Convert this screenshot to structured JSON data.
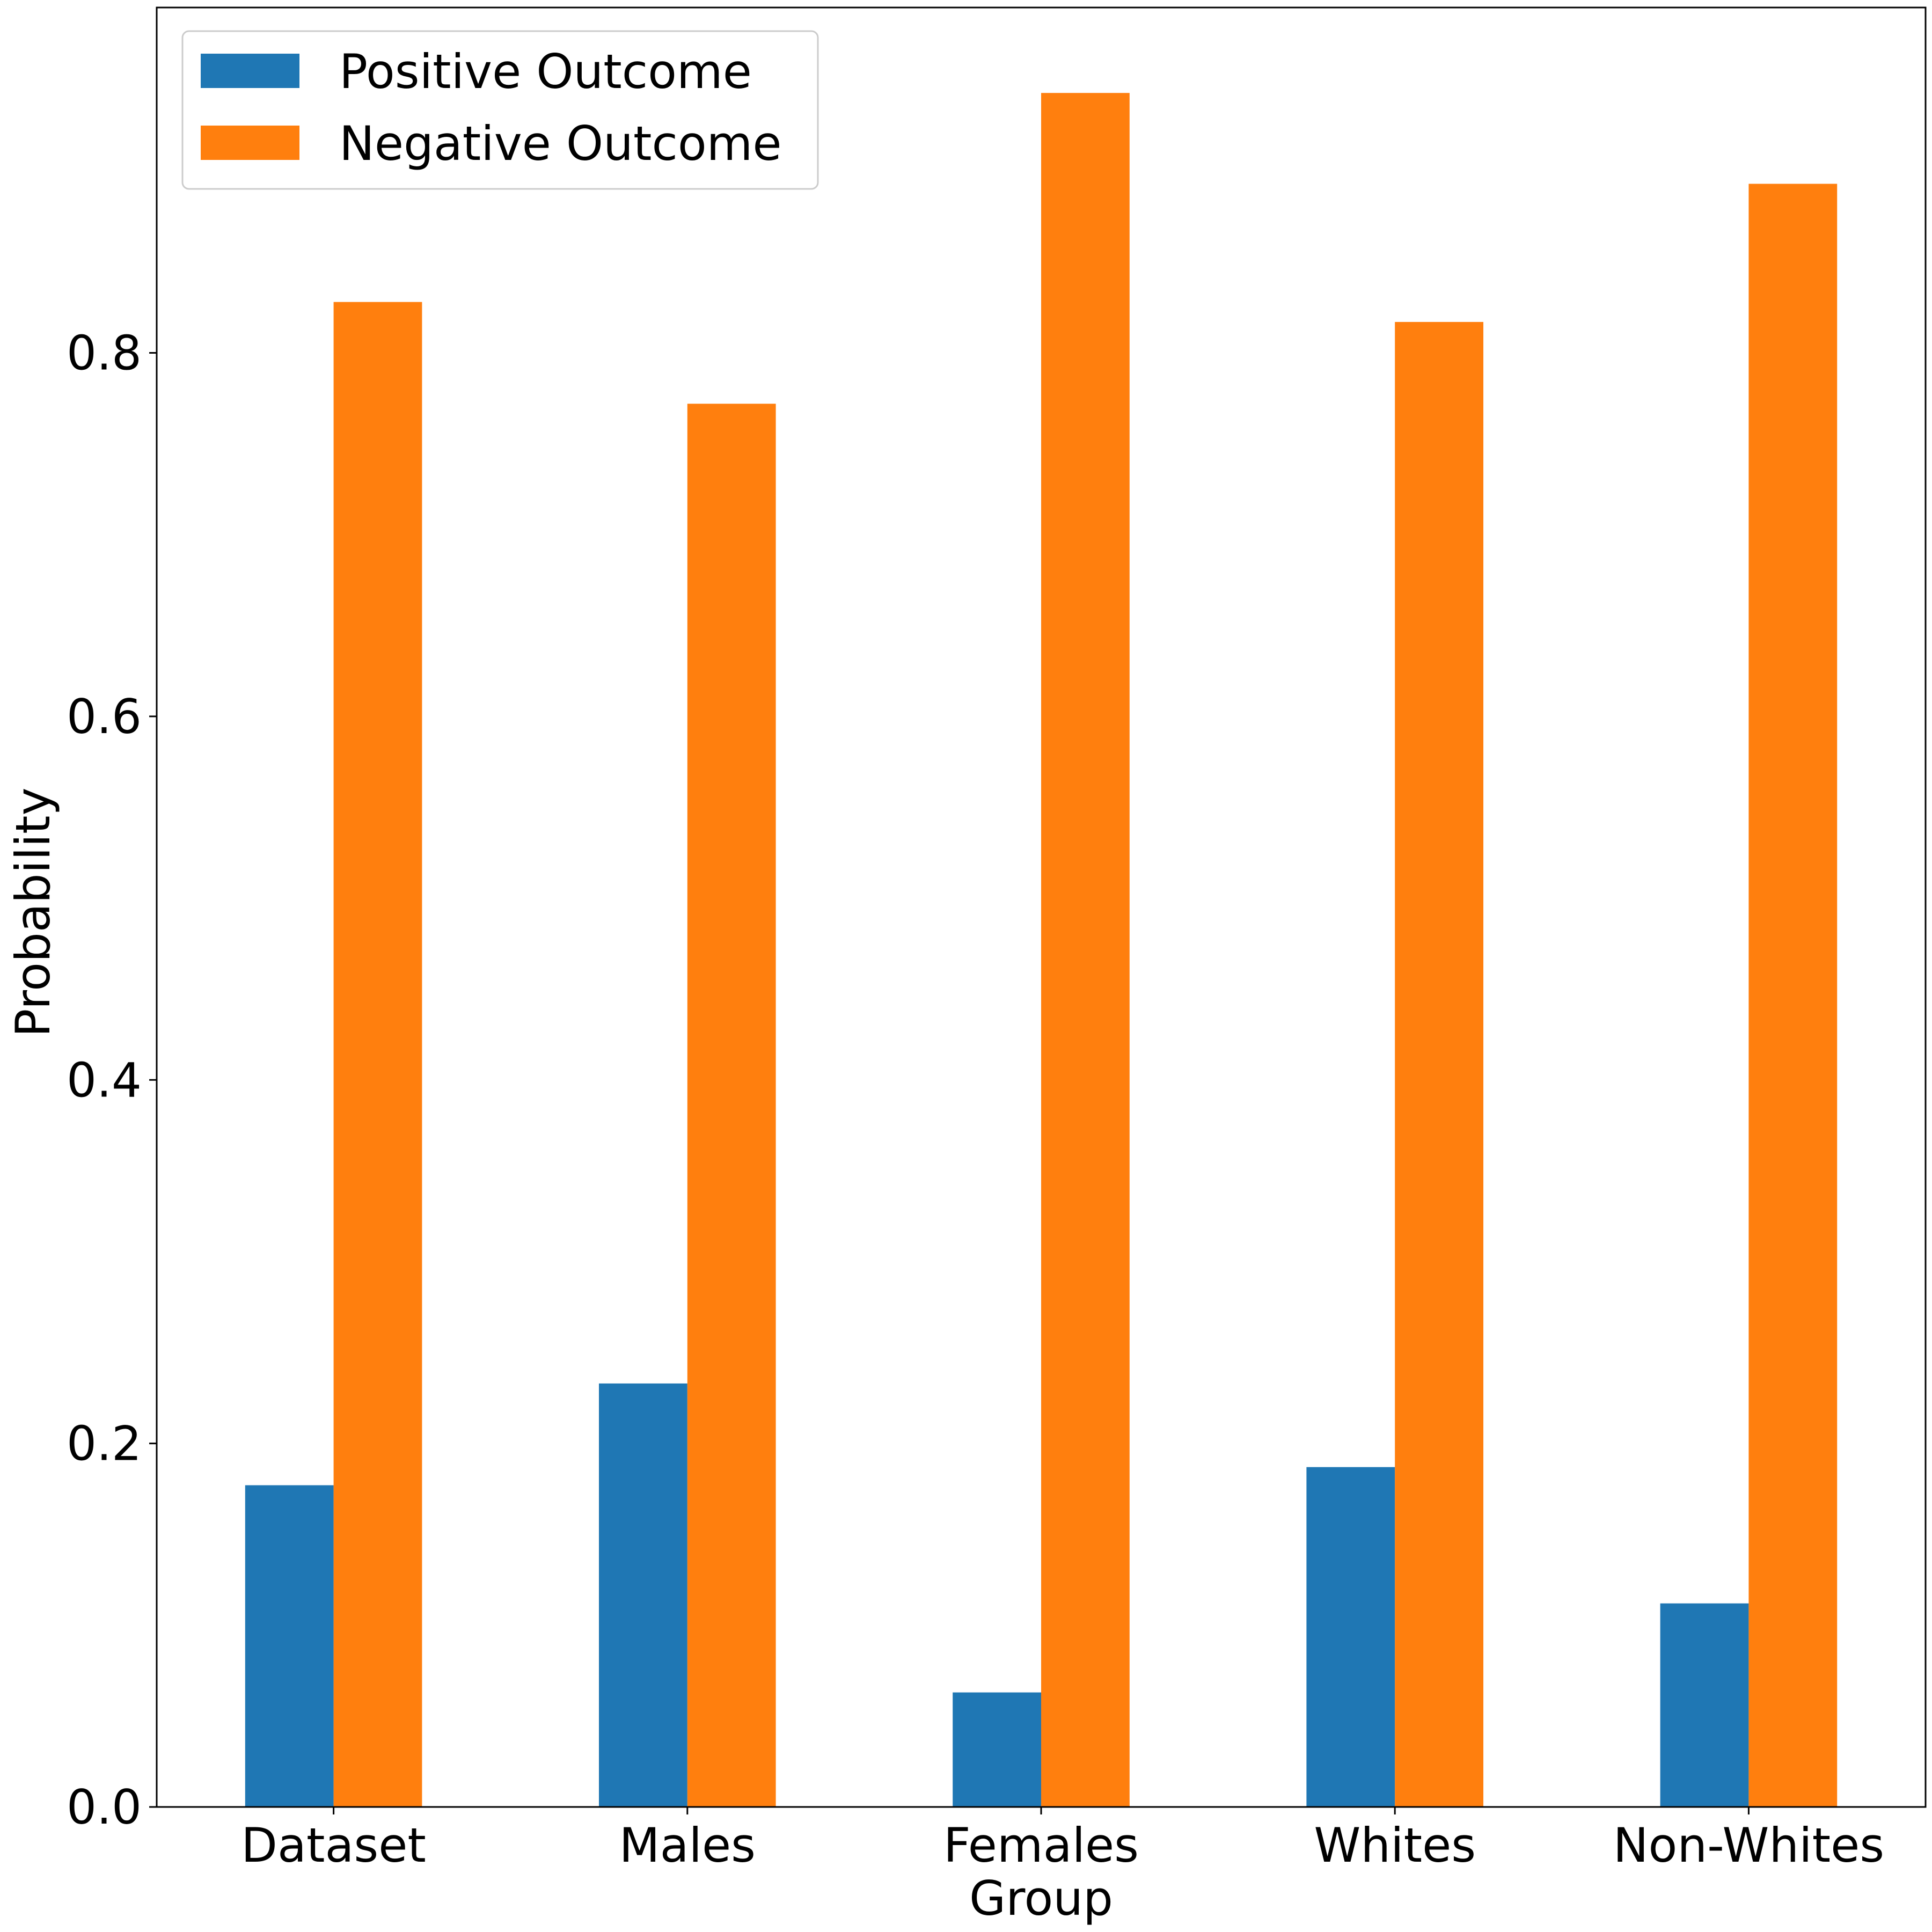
{
  "chart_data": {
    "type": "bar",
    "title": "",
    "xlabel": "Group",
    "ylabel": "Probability",
    "categories": [
      "Dataset",
      "Males",
      "Females",
      "Whites",
      "Non-Whites"
    ],
    "series": [
      {
        "name": "Positive Outcome",
        "color": "#1f77b4",
        "values": [
          0.177,
          0.233,
          0.063,
          0.187,
          0.112
        ]
      },
      {
        "name": "Negative Outcome",
        "color": "#ff7f0e",
        "values": [
          0.828,
          0.772,
          0.943,
          0.817,
          0.893
        ]
      }
    ],
    "ylim": [
      0,
      0.99
    ],
    "yticks": [
      {
        "value": 0.0,
        "label": "0.0"
      },
      {
        "value": 0.2,
        "label": "0.2"
      },
      {
        "value": 0.4,
        "label": "0.4"
      },
      {
        "value": 0.6,
        "label": "0.6"
      },
      {
        "value": 0.8,
        "label": "0.8"
      }
    ],
    "grid": false,
    "legend": {
      "position": "top-left"
    }
  }
}
